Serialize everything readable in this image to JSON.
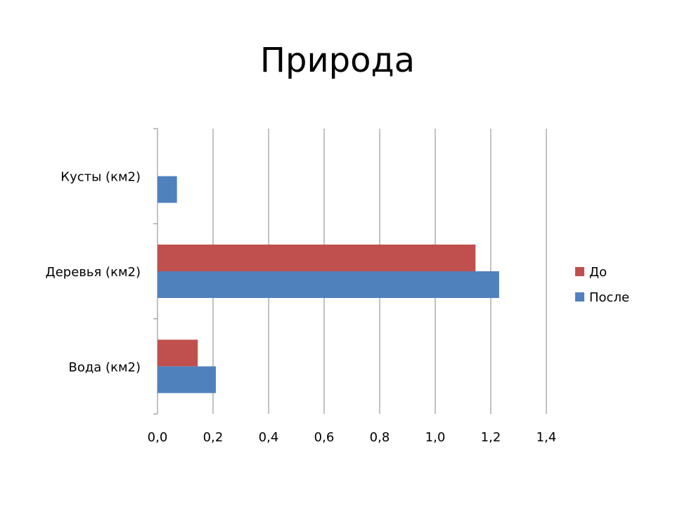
{
  "chart_data": {
    "type": "bar",
    "orientation": "horizontal",
    "title": "Природа",
    "categories": [
      "Вода (км2)",
      "Деревья (км2)",
      "Кусты (км2)"
    ],
    "series": [
      {
        "name": "После",
        "values": [
          0.21,
          1.23,
          0.07
        ],
        "color": "#4F81BD"
      },
      {
        "name": "До",
        "values": [
          0.145,
          1.145,
          0
        ],
        "color": "#C0504D"
      }
    ],
    "xlim": [
      0,
      1.4
    ],
    "x_ticks": [
      "0,0",
      "0,2",
      "0,4",
      "0,6",
      "0,8",
      "1,0",
      "1,2",
      "1,4"
    ],
    "grid": true,
    "legend_position": "right"
  }
}
